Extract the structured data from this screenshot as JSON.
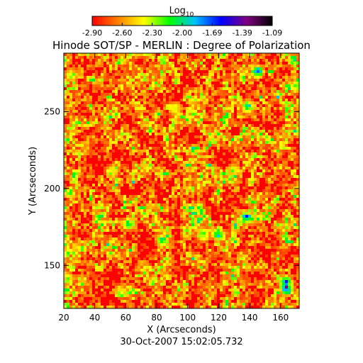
{
  "chart_data": {
    "type": "heatmap",
    "title": "Hinode SOT/SP - MERLIN : Degree of Polarization",
    "xlabel": "X (Arcseconds)",
    "ylabel": "Y (Arcseconds)",
    "timestamp": "30-Oct-2007 15:02:05.732",
    "colorbar": {
      "label_main": "Log",
      "label_sub": "10",
      "ticks": [
        "-2.90",
        "-2.60",
        "-2.30",
        "-2.00",
        "-1.69",
        "-1.39",
        "-1.09"
      ],
      "range": [
        -2.9,
        -1.09
      ],
      "colormap": [
        "#ff0000",
        "#ff8000",
        "#ffff00",
        "#00ff00",
        "#00c0ff",
        "#0000ff",
        "#800080",
        "#000000"
      ]
    },
    "xlim": [
      20,
      172
    ],
    "ylim": [
      122,
      288
    ],
    "xticks": [
      {
        "v": 20,
        "label": "20"
      },
      {
        "v": 40,
        "label": "40"
      },
      {
        "v": 60,
        "label": "60"
      },
      {
        "v": 80,
        "label": "80"
      },
      {
        "v": 100,
        "label": "100"
      },
      {
        "v": 120,
        "label": "120"
      },
      {
        "v": 140,
        "label": "140"
      },
      {
        "v": 160,
        "label": "160"
      }
    ],
    "yticks": [
      {
        "v": 150,
        "label": "150"
      },
      {
        "v": 200,
        "label": "200"
      },
      {
        "v": 250,
        "label": "250"
      }
    ],
    "background_level": -2.9,
    "features": [
      {
        "x": 164,
        "y": 135,
        "level": -1.09
      },
      {
        "x": 163,
        "y": 139,
        "level": -1.39
      },
      {
        "x": 145,
        "y": 276,
        "level": -1.39
      },
      {
        "x": 139,
        "y": 253,
        "level": -1.69
      },
      {
        "x": 138,
        "y": 181,
        "level": -1.39
      },
      {
        "x": 110,
        "y": 170,
        "level": -1.69
      },
      {
        "x": 120,
        "y": 170,
        "level": -1.69
      },
      {
        "x": 84,
        "y": 166,
        "level": -1.69
      },
      {
        "x": 62,
        "y": 177,
        "level": -1.69
      },
      {
        "x": 51,
        "y": 211,
        "level": -2.0
      },
      {
        "x": 25,
        "y": 274,
        "level": -2.0
      },
      {
        "x": 23,
        "y": 141,
        "level": -2.0
      },
      {
        "x": 57,
        "y": 133,
        "level": -2.0
      },
      {
        "x": 170,
        "y": 266,
        "level": -2.0
      },
      {
        "x": 130,
        "y": 212,
        "level": -2.0
      },
      {
        "x": 92,
        "y": 252,
        "level": -2.0
      }
    ]
  }
}
